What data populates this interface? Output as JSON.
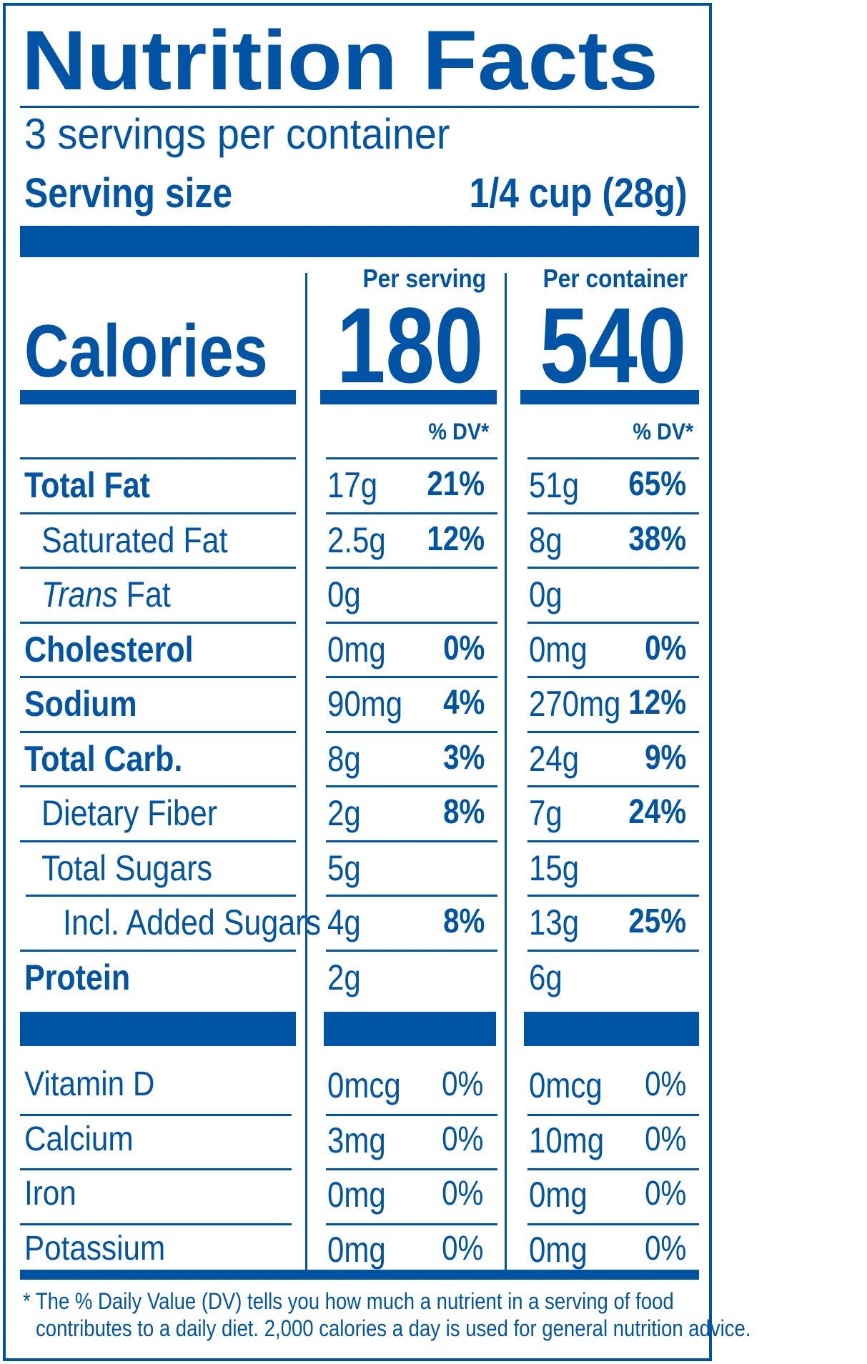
{
  "title": "Nutrition Facts",
  "servings_per_container": "3 servings per container",
  "serving_size_label": "Serving size",
  "serving_size_value": "1/4 cup (28g)",
  "per_serving_label": "Per serving",
  "per_container_label": "Per container",
  "calories_label": "Calories",
  "calories_per_serving": "180",
  "calories_per_container": "540",
  "dv_label": "% DV*",
  "nutrients": [
    {
      "name": "Total Fat",
      "bold": true,
      "indent": 0,
      "serving_amount": "17g",
      "serving_dv": "21%",
      "container_amount": "51g",
      "container_dv": "65%"
    },
    {
      "name": "Saturated Fat",
      "bold": false,
      "indent": 1,
      "serving_amount": "2.5g",
      "serving_dv": "12%",
      "container_amount": "8g",
      "container_dv": "38%"
    },
    {
      "name_italic": "Trans",
      "name": " Fat",
      "bold": false,
      "indent": 1,
      "serving_amount": "0g",
      "serving_dv": "",
      "container_amount": "0g",
      "container_dv": ""
    },
    {
      "name": "Cholesterol",
      "bold": true,
      "indent": 0,
      "serving_amount": "0mg",
      "serving_dv": "0%",
      "container_amount": "0mg",
      "container_dv": "0%"
    },
    {
      "name": "Sodium",
      "bold": true,
      "indent": 0,
      "serving_amount": "90mg",
      "serving_dv": "4%",
      "container_amount": "270mg",
      "container_dv": "12%"
    },
    {
      "name": "Total Carb.",
      "bold": true,
      "indent": 0,
      "serving_amount": "8g",
      "serving_dv": "3%",
      "container_amount": "24g",
      "container_dv": "9%"
    },
    {
      "name": "Dietary Fiber",
      "bold": false,
      "indent": 1,
      "serving_amount": "2g",
      "serving_dv": "8%",
      "container_amount": "7g",
      "container_dv": "24%"
    },
    {
      "name": "Total Sugars",
      "bold": false,
      "indent": 1,
      "serving_amount": "5g",
      "serving_dv": "",
      "container_amount": "15g",
      "container_dv": ""
    },
    {
      "name": "Incl. Added Sugars",
      "bold": false,
      "indent": 2,
      "serving_amount": "4g",
      "serving_dv": "8%",
      "container_amount": "13g",
      "container_dv": "25%"
    },
    {
      "name": "Protein",
      "bold": true,
      "indent": 0,
      "serving_amount": "2g",
      "serving_dv": "",
      "container_amount": "6g",
      "container_dv": ""
    }
  ],
  "vitamins": [
    {
      "name": "Vitamin D",
      "serving_amount": "0mcg",
      "serving_dv": "0%",
      "container_amount": "0mcg",
      "container_dv": "0%"
    },
    {
      "name": "Calcium",
      "serving_amount": "3mg",
      "serving_dv": "0%",
      "container_amount": "10mg",
      "container_dv": "0%"
    },
    {
      "name": "Iron",
      "serving_amount": "0mg",
      "serving_dv": "0%",
      "container_amount": "0mg",
      "container_dv": "0%"
    },
    {
      "name": "Potassium",
      "serving_amount": "0mg",
      "serving_dv": "0%",
      "container_amount": "0mg",
      "container_dv": "0%"
    }
  ],
  "footnote_line1": "* The % Daily Value (DV) tells you how much a nutrient in a serving of food",
  "footnote_line2": "contributes to a daily diet. 2,000 calories a day is used for general nutrition advice.",
  "colors": {
    "ink": "#0054a6",
    "background": "#ffffff"
  }
}
